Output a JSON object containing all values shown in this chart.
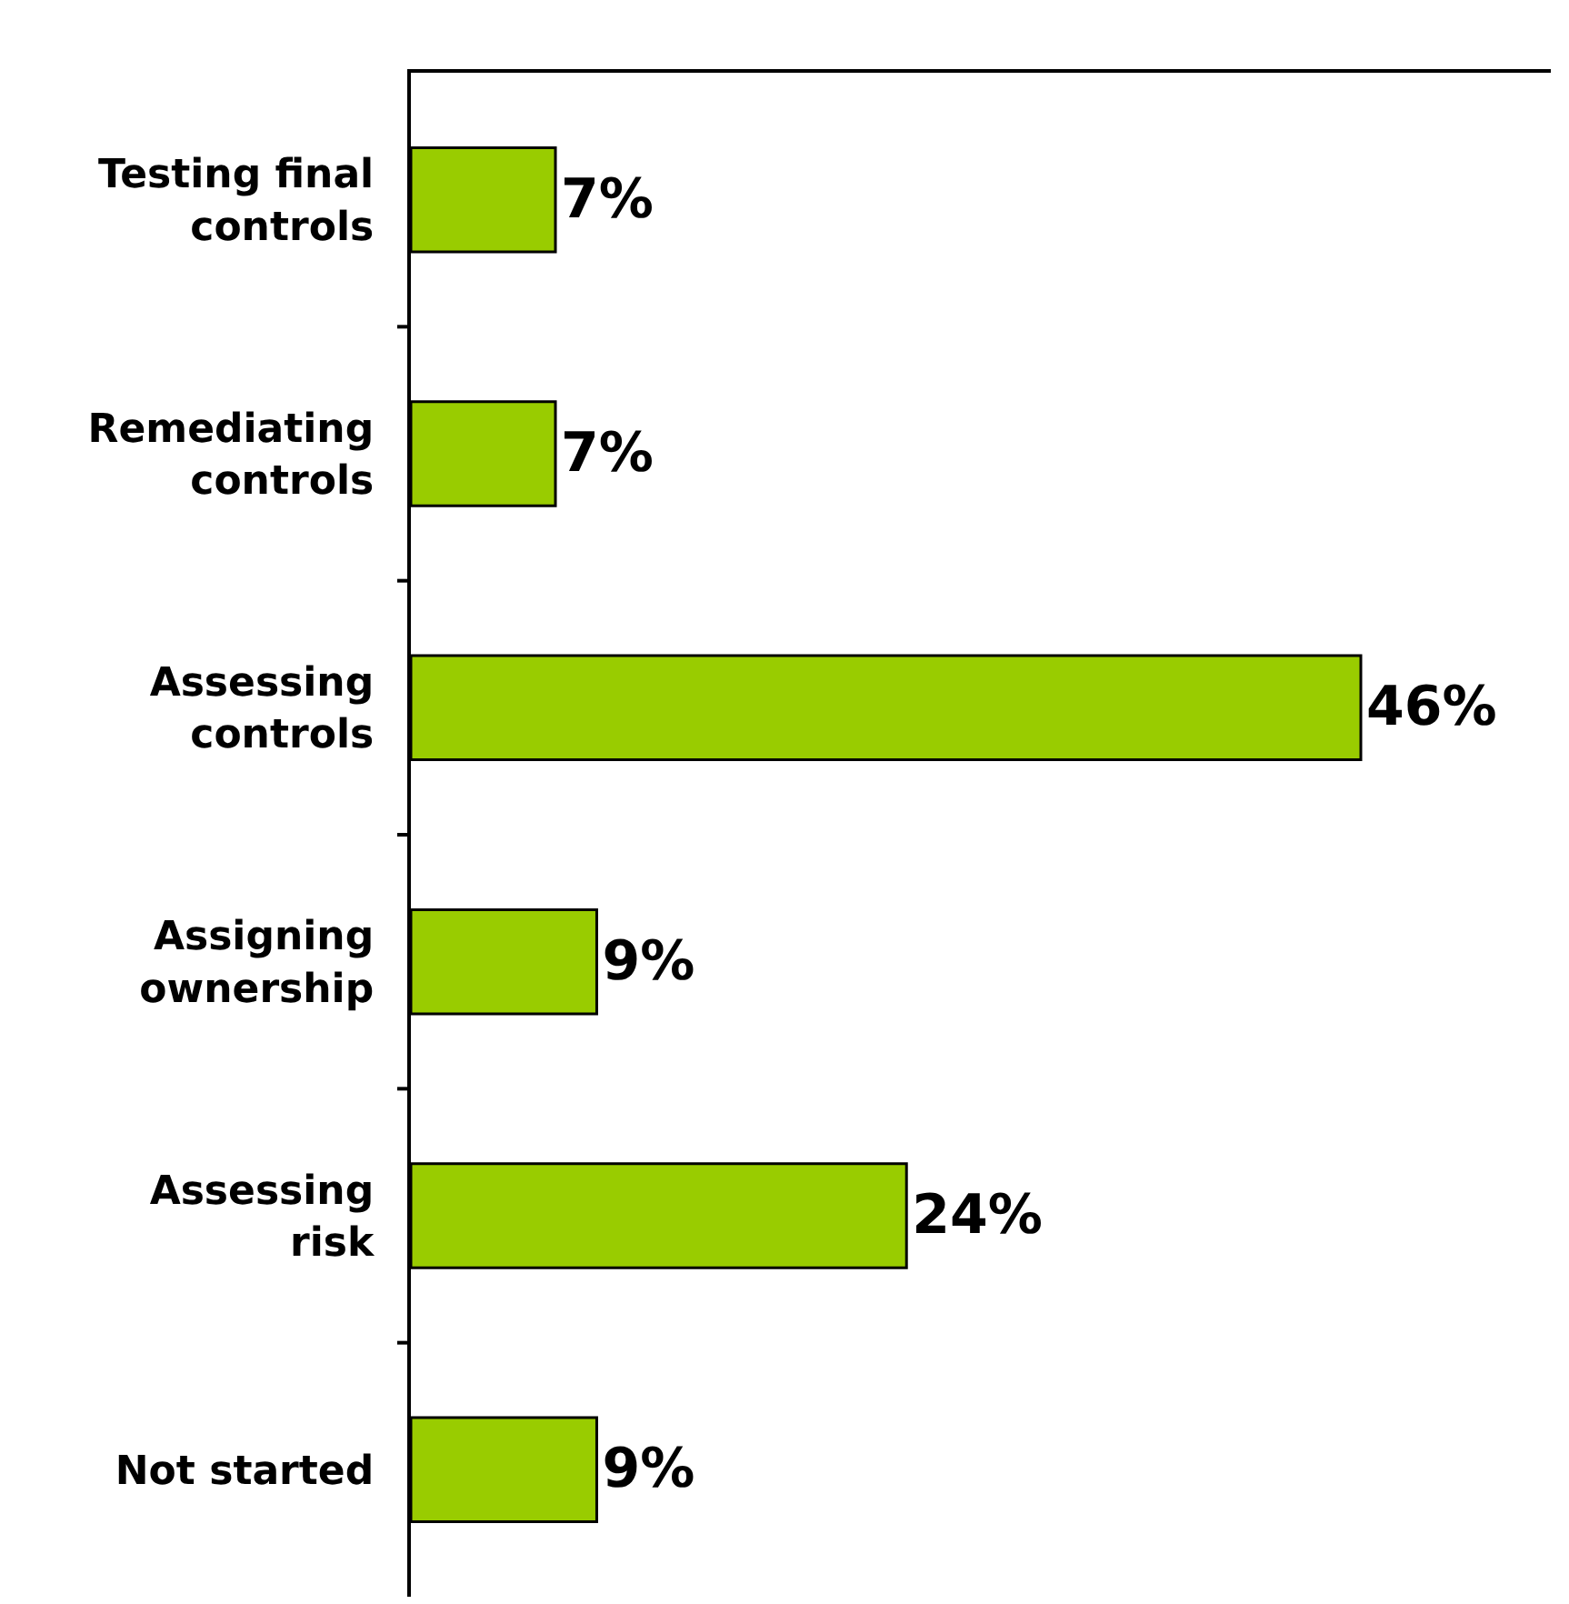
{
  "chart_data": {
    "type": "bar",
    "orientation": "horizontal",
    "categories": [
      "Testing final controls",
      "Remediating controls",
      "Assessing controls",
      "Assigning ownership",
      "Assessing risk",
      "Not started"
    ],
    "values": [
      7,
      7,
      46,
      9,
      24,
      9
    ],
    "value_labels": [
      "7%",
      "7%",
      "46%",
      "9%",
      "24%",
      "9%"
    ],
    "color": "#99cc00"
  }
}
